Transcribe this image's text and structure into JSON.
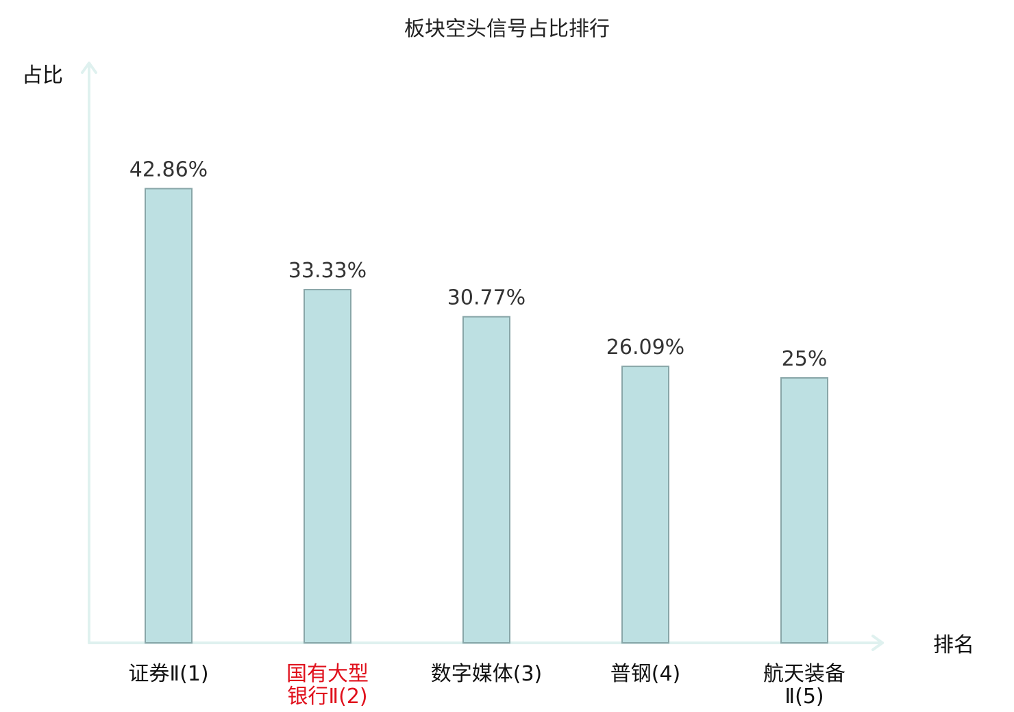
{
  "chart_data": {
    "type": "bar",
    "title": "板块空头信号占比排行",
    "ylabel": "占比",
    "xlabel": "排名",
    "categories": [
      {
        "lines": [
          "证券Ⅱ(1)"
        ],
        "highlight": false
      },
      {
        "lines": [
          "国有大型",
          "银行Ⅱ(2)"
        ],
        "highlight": true
      },
      {
        "lines": [
          "数字媒体(3)"
        ],
        "highlight": false
      },
      {
        "lines": [
          "普钢(4)"
        ],
        "highlight": false
      },
      {
        "lines": [
          "航天装备",
          "Ⅱ(5)"
        ],
        "highlight": false
      }
    ],
    "values": [
      42.86,
      33.33,
      30.77,
      26.09,
      25
    ],
    "value_labels": [
      "42.86%",
      "33.33%",
      "30.77%",
      "26.09%",
      "25%"
    ],
    "ylim": [
      0,
      50
    ],
    "grid": false,
    "colors": {
      "bar_fill": "#bde0e2",
      "bar_stroke": "#88a6a8",
      "axis": "#dff1ef",
      "highlight_text": "#e0101c",
      "normal_text": "#111111"
    }
  }
}
